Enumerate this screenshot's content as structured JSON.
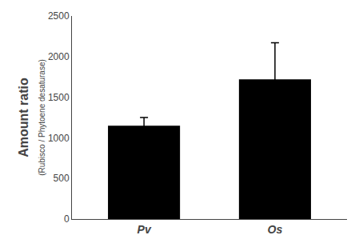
{
  "chart_data": {
    "type": "bar",
    "categories": [
      "Pv",
      "Os"
    ],
    "values": [
      1150,
      1720
    ],
    "errors_up": [
      100,
      450
    ],
    "errors_down": [
      100,
      200
    ],
    "color": "#000000",
    "ylabel": "Amount ratio",
    "ylabel_sub": "(Rubisco / Phytoene desaturase)",
    "ylim": [
      0,
      2500
    ],
    "yticks": [
      0,
      500,
      1000,
      1500,
      2000,
      2500
    ],
    "grid": false
  }
}
